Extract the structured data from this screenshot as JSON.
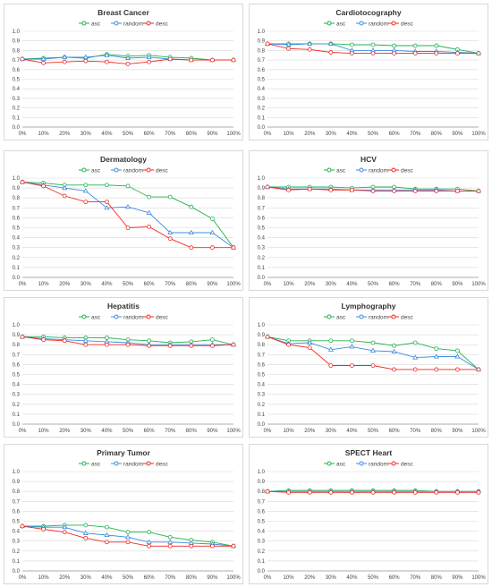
{
  "colors": {
    "asc": "#22b14c",
    "random": "#3c8ce0",
    "desc": "#ee2a24",
    "grid": "#d9d9d9",
    "axis": "#999999"
  },
  "chart_data": [
    {
      "type": "line",
      "title": "Breast Cancer",
      "categories": [
        "0%",
        "10%",
        "20%",
        "30%",
        "40%",
        "50%",
        "60%",
        "70%",
        "80%",
        "90%",
        "100%"
      ],
      "ylim": [
        0,
        1
      ],
      "yticks": [
        "0.0",
        "0.1",
        "0.2",
        "0.3",
        "0.4",
        "0.5",
        "0.6",
        "0.7",
        "0.8",
        "0.9",
        "1.0"
      ],
      "grid": true,
      "legend": "top",
      "series": [
        {
          "name": "asc",
          "key": "asc",
          "values": [
            0.71,
            0.72,
            0.73,
            0.72,
            0.76,
            0.74,
            0.75,
            0.73,
            0.72,
            0.7,
            0.7
          ]
        },
        {
          "name": "random",
          "key": "random",
          "values": [
            0.71,
            0.71,
            0.73,
            0.73,
            0.75,
            0.72,
            0.73,
            0.71,
            0.7,
            0.7,
            0.7
          ]
        },
        {
          "name": "desc",
          "key": "desc",
          "values": [
            0.71,
            0.67,
            0.68,
            0.69,
            0.68,
            0.66,
            0.68,
            0.71,
            0.7,
            0.7,
            0.7
          ]
        }
      ]
    },
    {
      "type": "line",
      "title": "Cardiotocography",
      "categories": [
        "0%",
        "10%",
        "20%",
        "30%",
        "40%",
        "50%",
        "60%",
        "70%",
        "80%",
        "90%",
        "100%"
      ],
      "ylim": [
        0,
        1
      ],
      "yticks": [
        "0.0",
        "0.1",
        "0.2",
        "0.3",
        "0.4",
        "0.5",
        "0.6",
        "0.7",
        "0.8",
        "0.9",
        "1.0"
      ],
      "grid": true,
      "legend": "top",
      "series": [
        {
          "name": "asc",
          "key": "asc",
          "values": [
            0.87,
            0.87,
            0.87,
            0.87,
            0.86,
            0.86,
            0.85,
            0.85,
            0.85,
            0.81,
            0.77
          ]
        },
        {
          "name": "random",
          "key": "random",
          "values": [
            0.87,
            0.86,
            0.87,
            0.87,
            0.8,
            0.8,
            0.8,
            0.79,
            0.79,
            0.78,
            0.77
          ]
        },
        {
          "name": "desc",
          "key": "desc",
          "values": [
            0.87,
            0.82,
            0.81,
            0.78,
            0.77,
            0.77,
            0.77,
            0.77,
            0.77,
            0.77,
            0.77
          ]
        }
      ]
    },
    {
      "type": "line",
      "title": "Dermatology",
      "categories": [
        "0%",
        "10%",
        "20%",
        "30%",
        "40%",
        "50%",
        "60%",
        "70%",
        "80%",
        "90%",
        "100%"
      ],
      "ylim": [
        0,
        1
      ],
      "yticks": [
        "0.0",
        "0.1",
        "0.2",
        "0.3",
        "0.4",
        "0.5",
        "0.6",
        "0.7",
        "0.8",
        "0.9",
        "1.0"
      ],
      "grid": true,
      "legend": "top",
      "series": [
        {
          "name": "asc",
          "key": "asc",
          "values": [
            0.96,
            0.95,
            0.93,
            0.93,
            0.93,
            0.92,
            0.81,
            0.81,
            0.71,
            0.59,
            0.3
          ]
        },
        {
          "name": "random",
          "key": "random",
          "values": [
            0.96,
            0.93,
            0.9,
            0.87,
            0.7,
            0.71,
            0.65,
            0.45,
            0.45,
            0.45,
            0.3
          ]
        },
        {
          "name": "desc",
          "key": "desc",
          "values": [
            0.96,
            0.92,
            0.82,
            0.76,
            0.76,
            0.5,
            0.51,
            0.39,
            0.3,
            0.3,
            0.3
          ]
        }
      ]
    },
    {
      "type": "line",
      "title": "HCV",
      "categories": [
        "0%",
        "10%",
        "20%",
        "30%",
        "40%",
        "50%",
        "60%",
        "70%",
        "80%",
        "90%",
        "100%"
      ],
      "ylim": [
        0,
        1
      ],
      "yticks": [
        "0.0",
        "0.1",
        "0.2",
        "0.3",
        "0.4",
        "0.5",
        "0.6",
        "0.7",
        "0.8",
        "0.9",
        "1.0"
      ],
      "grid": true,
      "legend": "top",
      "series": [
        {
          "name": "asc",
          "key": "asc",
          "values": [
            0.91,
            0.91,
            0.91,
            0.91,
            0.9,
            0.91,
            0.91,
            0.89,
            0.89,
            0.89,
            0.87
          ]
        },
        {
          "name": "random",
          "key": "random",
          "values": [
            0.91,
            0.89,
            0.89,
            0.89,
            0.88,
            0.88,
            0.88,
            0.88,
            0.88,
            0.87,
            0.87
          ]
        },
        {
          "name": "desc",
          "key": "desc",
          "values": [
            0.91,
            0.88,
            0.89,
            0.88,
            0.88,
            0.87,
            0.87,
            0.87,
            0.87,
            0.87,
            0.87
          ]
        }
      ]
    },
    {
      "type": "line",
      "title": "Hepatitis",
      "categories": [
        "0%",
        "10%",
        "20%",
        "30%",
        "40%",
        "50%",
        "60%",
        "70%",
        "80%",
        "90%",
        "100%"
      ],
      "ylim": [
        0,
        1
      ],
      "yticks": [
        "0.0",
        "0.1",
        "0.2",
        "0.3",
        "0.4",
        "0.5",
        "0.6",
        "0.7",
        "0.8",
        "0.9",
        "1.0"
      ],
      "grid": true,
      "legend": "top",
      "series": [
        {
          "name": "asc",
          "key": "asc",
          "values": [
            0.88,
            0.88,
            0.87,
            0.87,
            0.87,
            0.85,
            0.84,
            0.82,
            0.83,
            0.85,
            0.8
          ]
        },
        {
          "name": "random",
          "key": "random",
          "values": [
            0.88,
            0.86,
            0.85,
            0.84,
            0.83,
            0.82,
            0.8,
            0.8,
            0.8,
            0.8,
            0.8
          ]
        },
        {
          "name": "desc",
          "key": "desc",
          "values": [
            0.88,
            0.85,
            0.84,
            0.8,
            0.8,
            0.8,
            0.79,
            0.79,
            0.79,
            0.79,
            0.8
          ]
        }
      ]
    },
    {
      "type": "line",
      "title": "Lymphography",
      "categories": [
        "0%",
        "10%",
        "20%",
        "30%",
        "40%",
        "50%",
        "60%",
        "70%",
        "80%",
        "90%",
        "100%"
      ],
      "ylim": [
        0,
        1
      ],
      "yticks": [
        "0.0",
        "0.1",
        "0.2",
        "0.3",
        "0.4",
        "0.5",
        "0.6",
        "0.7",
        "0.8",
        "0.9",
        "1.0"
      ],
      "grid": true,
      "legend": "top",
      "series": [
        {
          "name": "asc",
          "key": "asc",
          "values": [
            0.88,
            0.84,
            0.84,
            0.84,
            0.84,
            0.82,
            0.79,
            0.82,
            0.76,
            0.74,
            0.55
          ]
        },
        {
          "name": "random",
          "key": "random",
          "values": [
            0.88,
            0.81,
            0.82,
            0.75,
            0.78,
            0.74,
            0.73,
            0.67,
            0.68,
            0.68,
            0.55
          ]
        },
        {
          "name": "desc",
          "key": "desc",
          "values": [
            0.88,
            0.8,
            0.77,
            0.59,
            0.59,
            0.59,
            0.55,
            0.55,
            0.55,
            0.55,
            0.55
          ]
        }
      ]
    },
    {
      "type": "line",
      "title": "Primary Tumor",
      "categories": [
        "0%",
        "10%",
        "20%",
        "30%",
        "40%",
        "50%",
        "60%",
        "70%",
        "80%",
        "90%",
        "100%"
      ],
      "ylim": [
        0,
        1
      ],
      "yticks": [
        "0.0",
        "0.1",
        "0.2",
        "0.3",
        "0.4",
        "0.5",
        "0.6",
        "0.7",
        "0.8",
        "0.9",
        "1.0"
      ],
      "grid": true,
      "legend": "top",
      "series": [
        {
          "name": "asc",
          "key": "asc",
          "values": [
            0.45,
            0.45,
            0.46,
            0.46,
            0.44,
            0.39,
            0.39,
            0.34,
            0.31,
            0.29,
            0.25
          ]
        },
        {
          "name": "random",
          "key": "random",
          "values": [
            0.45,
            0.44,
            0.44,
            0.38,
            0.36,
            0.34,
            0.29,
            0.29,
            0.28,
            0.27,
            0.25
          ]
        },
        {
          "name": "desc",
          "key": "desc",
          "values": [
            0.45,
            0.42,
            0.39,
            0.33,
            0.29,
            0.29,
            0.25,
            0.25,
            0.25,
            0.25,
            0.25
          ]
        }
      ]
    },
    {
      "type": "line",
      "title": "SPECT Heart",
      "categories": [
        "0%",
        "10%",
        "20%",
        "30%",
        "40%",
        "50%",
        "60%",
        "70%",
        "80%",
        "90%",
        "100%"
      ],
      "ylim": [
        0,
        1
      ],
      "yticks": [
        "0.0",
        "0.1",
        "0.2",
        "0.3",
        "0.4",
        "0.5",
        "0.6",
        "0.7",
        "0.8",
        "0.9",
        "1.0"
      ],
      "grid": true,
      "legend": "top",
      "series": [
        {
          "name": "asc",
          "key": "asc",
          "values": [
            0.8,
            0.81,
            0.81,
            0.81,
            0.81,
            0.81,
            0.81,
            0.81,
            0.8,
            0.8,
            0.8
          ]
        },
        {
          "name": "random",
          "key": "random",
          "values": [
            0.8,
            0.8,
            0.8,
            0.8,
            0.8,
            0.8,
            0.8,
            0.8,
            0.8,
            0.8,
            0.8
          ]
        },
        {
          "name": "desc",
          "key": "desc",
          "values": [
            0.8,
            0.79,
            0.79,
            0.79,
            0.79,
            0.79,
            0.79,
            0.79,
            0.79,
            0.79,
            0.79
          ]
        }
      ]
    }
  ]
}
